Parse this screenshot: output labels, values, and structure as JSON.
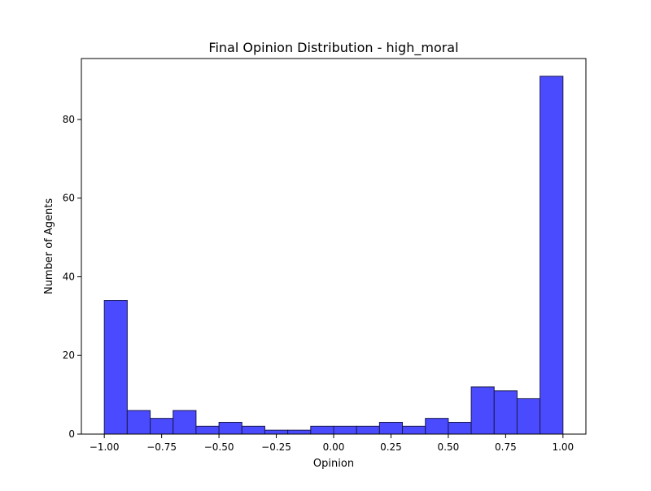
{
  "chart_data": {
    "type": "bar",
    "title": "Final Opinion Distribution - high_moral",
    "xlabel": "Opinion",
    "ylabel": "Number of Agents",
    "xlim": [
      -1.1,
      1.1
    ],
    "ylim": [
      0,
      95.5
    ],
    "grid": false,
    "bin_edges": [
      -1.0,
      -0.9,
      -0.8,
      -0.7,
      -0.6,
      -0.5,
      -0.4,
      -0.3,
      -0.2,
      -0.1,
      0.0,
      0.1,
      0.2,
      0.3,
      0.4,
      0.5,
      0.6,
      0.7,
      0.8,
      0.9,
      1.0
    ],
    "counts": [
      34,
      6,
      4,
      6,
      2,
      3,
      2,
      1,
      1,
      2,
      2,
      2,
      3,
      2,
      4,
      3,
      12,
      11,
      9,
      91
    ],
    "x_ticks": [
      -1.0,
      -0.75,
      -0.5,
      -0.25,
      0.0,
      0.25,
      0.5,
      0.75,
      1.0
    ],
    "x_tick_labels": [
      "−1.00",
      "−0.75",
      "−0.50",
      "−0.25",
      "0.00",
      "0.25",
      "0.50",
      "0.75",
      "1.00"
    ],
    "y_ticks": [
      0,
      20,
      40,
      60,
      80
    ],
    "y_tick_labels": [
      "0",
      "20",
      "40",
      "60",
      "80"
    ],
    "bar_color": "#4a4aff",
    "edge_color": "#1a1a4d"
  }
}
